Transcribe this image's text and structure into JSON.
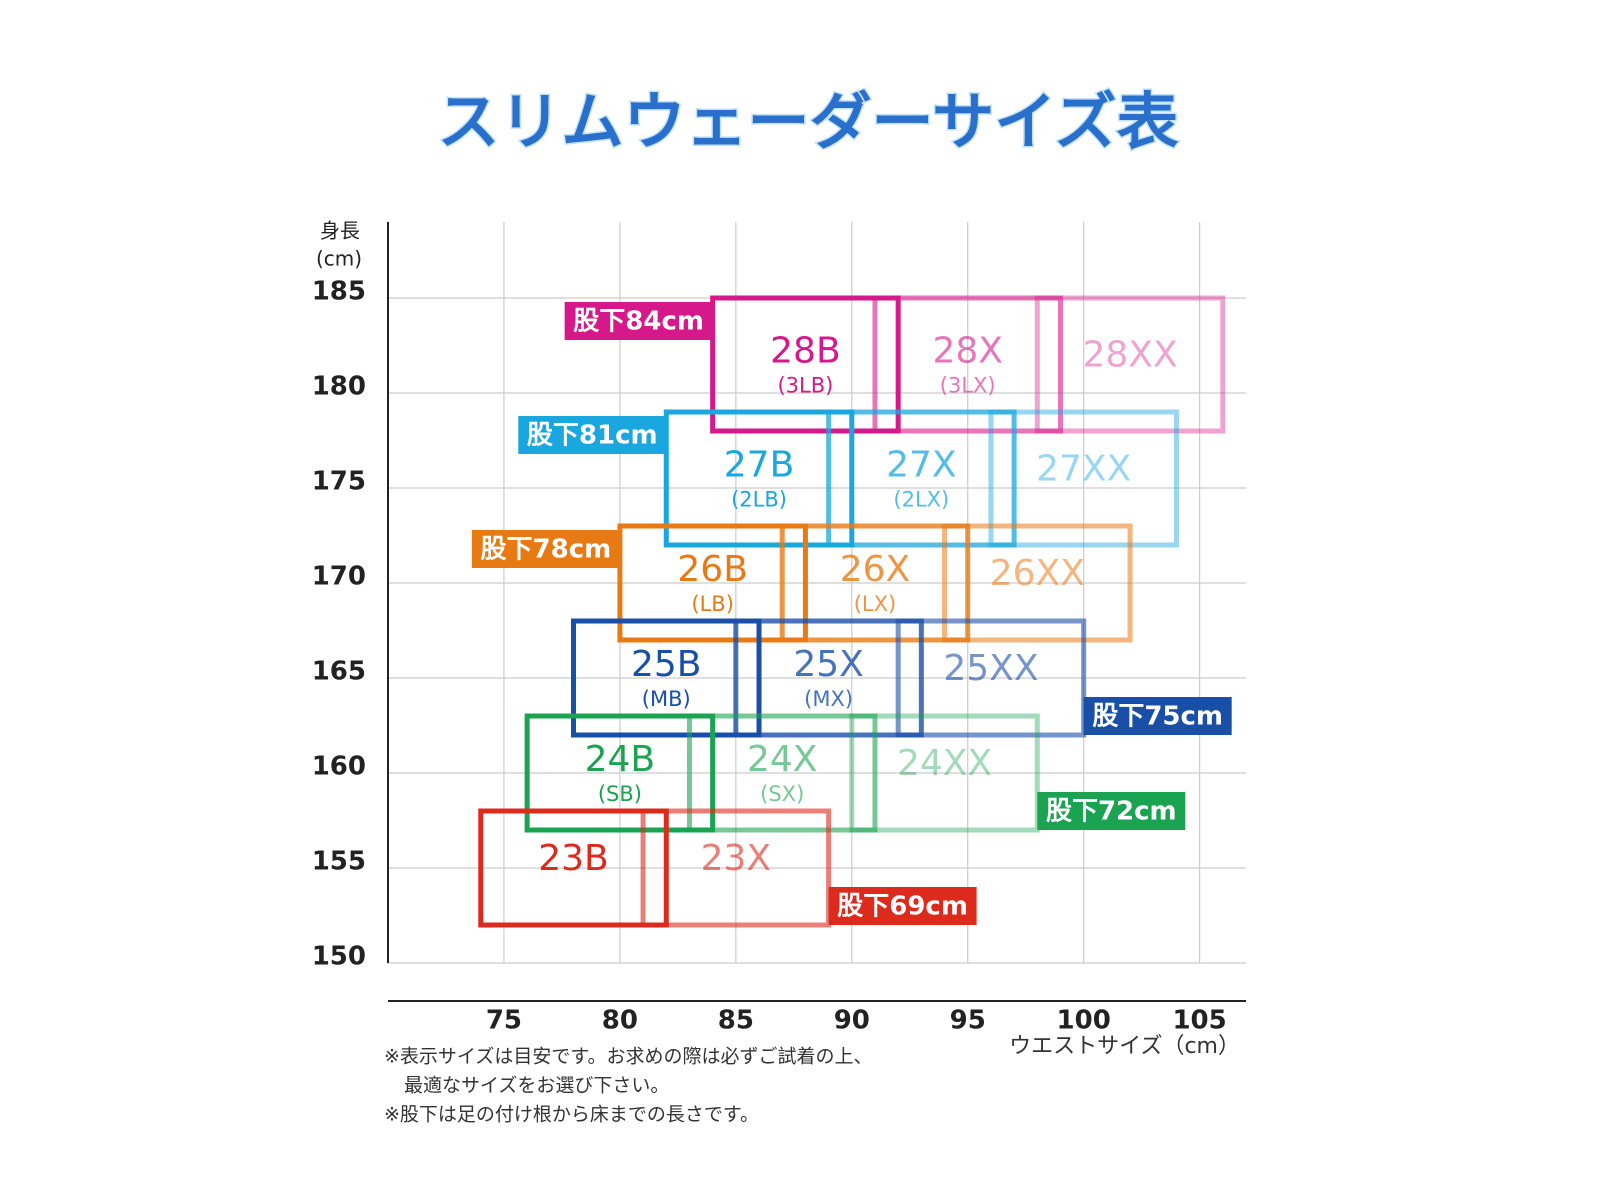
{
  "chart_data": {
    "type": "size-box",
    "title": "スリムウェーダーサイズ表",
    "ylabel": [
      "身長",
      "(cm)"
    ],
    "xlabel": "ウエストサイズ（cm）",
    "xlim": [
      70,
      107
    ],
    "xticks": [
      75,
      80,
      85,
      90,
      95,
      100,
      105
    ],
    "ylim": [
      150,
      189
    ],
    "yticks": [
      150,
      155,
      160,
      165,
      170,
      175,
      180,
      185
    ],
    "grid": true,
    "groups": [
      {
        "name": "股下84cm",
        "color": "#d6198a",
        "boxes": [
          {
            "label": "28B",
            "sublabel": "(3LB)",
            "x": [
              84,
              92
            ],
            "y": [
              178,
              185
            ],
            "opacity": 1
          },
          {
            "label": "28X",
            "sublabel": "(3LX)",
            "x": [
              91,
              99
            ],
            "y": [
              178,
              185
            ],
            "opacity": 0.6
          },
          {
            "label": "28XX",
            "x": [
              98,
              106
            ],
            "y": [
              178,
              185
            ],
            "opacity": 0.4
          }
        ]
      },
      {
        "name": "股下81cm",
        "color": "#1aa7e0",
        "boxes": [
          {
            "label": "27B",
            "sublabel": "(2LB)",
            "x": [
              82,
              90
            ],
            "y": [
              172,
              179
            ],
            "opacity": 1
          },
          {
            "label": "27X",
            "sublabel": "(2LX)",
            "x": [
              89,
              97
            ],
            "y": [
              172,
              179
            ],
            "opacity": 0.75
          },
          {
            "label": "27XX",
            "x": [
              96,
              104
            ],
            "y": [
              172,
              179
            ],
            "opacity": 0.45
          }
        ]
      },
      {
        "name": "股下78cm",
        "color": "#e87a14",
        "boxes": [
          {
            "label": "26B",
            "sublabel": "(LB)",
            "x": [
              80,
              88
            ],
            "y": [
              167,
              173
            ],
            "opacity": 1
          },
          {
            "label": "26X",
            "sublabel": "(LX)",
            "x": [
              87,
              95
            ],
            "y": [
              167,
              173
            ],
            "opacity": 0.8
          },
          {
            "label": "26XX",
            "x": [
              94,
              102
            ],
            "y": [
              167,
              173
            ],
            "opacity": 0.55
          }
        ]
      },
      {
        "name": "股下75cm",
        "color": "#1a4fa8",
        "boxes": [
          {
            "label": "25B",
            "sublabel": "(MB)",
            "x": [
              78,
              86
            ],
            "y": [
              162,
              168
            ],
            "opacity": 1
          },
          {
            "label": "25X",
            "sublabel": "(MX)",
            "x": [
              85,
              93
            ],
            "y": [
              162,
              168
            ],
            "opacity": 0.8
          },
          {
            "label": "25XX",
            "x": [
              92,
              100
            ],
            "y": [
              162,
              168
            ],
            "opacity": 0.6
          }
        ]
      },
      {
        "name": "股下72cm",
        "color": "#1aa351",
        "boxes": [
          {
            "label": "24B",
            "sublabel": "(SB)",
            "x": [
              76,
              84
            ],
            "y": [
              157,
              163
            ],
            "opacity": 1
          },
          {
            "label": "24X",
            "sublabel": "(SX)",
            "x": [
              83,
              91
            ],
            "y": [
              157,
              163
            ],
            "opacity": 0.6
          },
          {
            "label": "24XX",
            "x": [
              90,
              98
            ],
            "y": [
              157,
              163
            ],
            "opacity": 0.4
          }
        ]
      },
      {
        "name": "股下69cm",
        "color": "#dc2a1c",
        "boxes": [
          {
            "label": "23B",
            "x": [
              74,
              82
            ],
            "y": [
              152,
              158
            ],
            "opacity": 1
          },
          {
            "label": "23X",
            "x": [
              81,
              89
            ],
            "y": [
              152,
              158
            ],
            "opacity": 0.6
          }
        ]
      }
    ],
    "notes": [
      "※表示サイズは目安です。お求めの際は必ずご試着の上、",
      "最適なサイズをお選び下さい。",
      "※股下は足の付け根から床までの長さです。"
    ]
  }
}
